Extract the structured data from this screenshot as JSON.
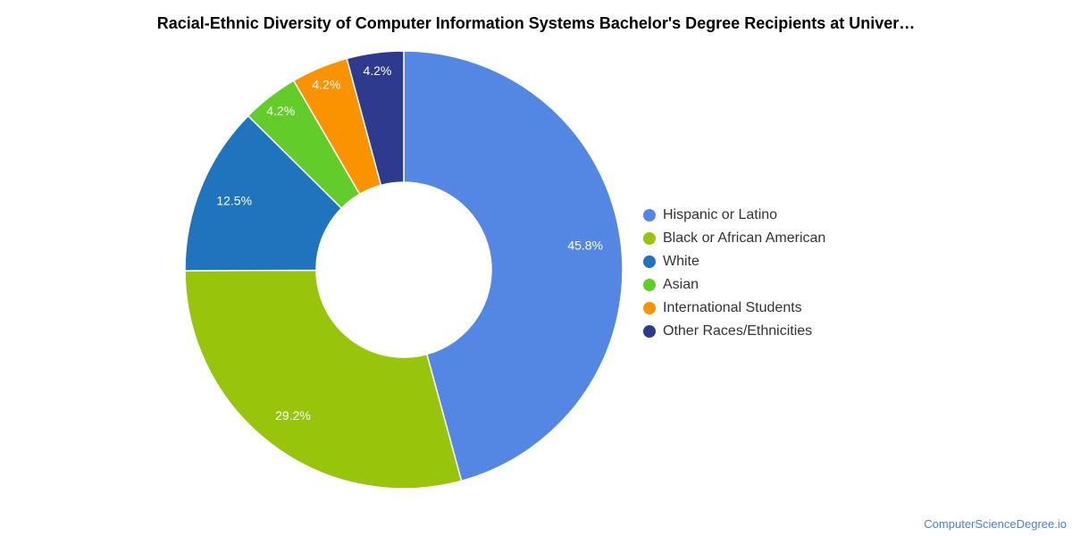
{
  "chart_data": {
    "type": "pie",
    "title": "Racial-Ethnic Diversity of Computer Information Systems Bachelor's Degree Recipients at Univer…",
    "slices": [
      {
        "label": "Hispanic or Latino",
        "value": 45.8,
        "display": "45.8%",
        "color": "#5487e4"
      },
      {
        "label": "Black or African American",
        "value": 29.2,
        "display": "29.2%",
        "color": "#98c40c"
      },
      {
        "label": "White",
        "value": 12.5,
        "display": "12.5%",
        "color": "#1f74bd"
      },
      {
        "label": "Asian",
        "value": 4.2,
        "display": "4.2%",
        "color": "#62cc2b"
      },
      {
        "label": "International Students",
        "value": 4.2,
        "display": "4.2%",
        "color": "#fb9300"
      },
      {
        "label": "Other Races/Ethnicities",
        "value": 4.2,
        "display": "4.2%",
        "color": "#2d3a8d"
      }
    ],
    "legend_position": "right",
    "hole": "donut"
  },
  "footer": {
    "credit": "ComputerScienceDegree.io"
  }
}
